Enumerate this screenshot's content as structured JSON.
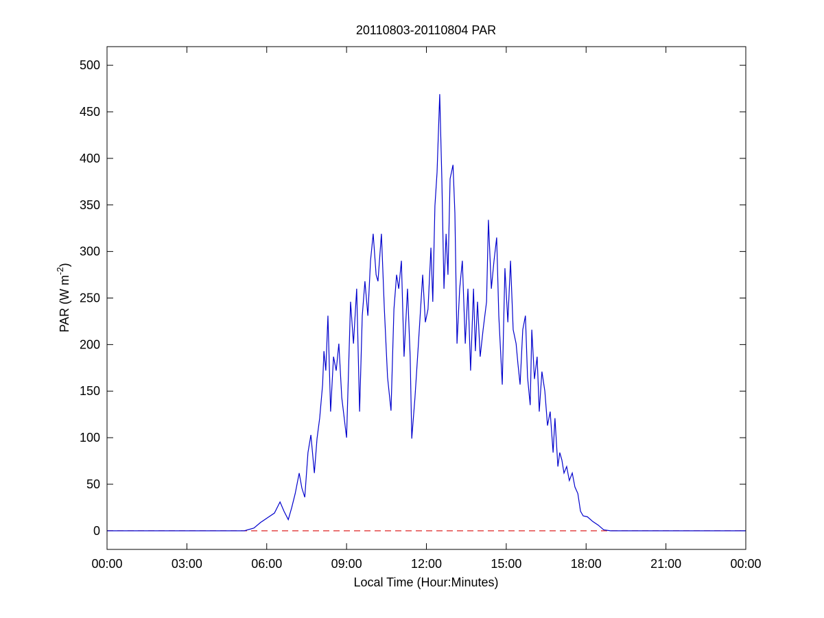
{
  "chart_data": {
    "type": "line",
    "title": "20110803-20110804 PAR",
    "xlabel": "Local Time (Hour:Minutes)",
    "ylabel": [
      "PAR (W m",
      "-2",
      ")"
    ],
    "xlim": [
      0,
      24
    ],
    "xticks": [
      {
        "value": 0,
        "label": "00:00"
      },
      {
        "value": 3,
        "label": "03:00"
      },
      {
        "value": 6,
        "label": "06:00"
      },
      {
        "value": 9,
        "label": "09:00"
      },
      {
        "value": 12,
        "label": "12:00"
      },
      {
        "value": 15,
        "label": "15:00"
      },
      {
        "value": 18,
        "label": "18:00"
      },
      {
        "value": 21,
        "label": "21:00"
      },
      {
        "value": 24,
        "label": "00:00"
      }
    ],
    "ylim": [
      -20,
      520
    ],
    "yticks": [
      0,
      50,
      100,
      150,
      200,
      250,
      300,
      350,
      400,
      450,
      500
    ],
    "grid": false,
    "reference_line": {
      "y": 0,
      "color": "#dd2222",
      "dashed": true
    },
    "series": [
      {
        "color": "#0000cc",
        "x": [
          0,
          5.16,
          5.52,
          5.77,
          6.08,
          6.29,
          6.5,
          6.65,
          6.81,
          6.94,
          7.07,
          7.22,
          7.32,
          7.43,
          7.55,
          7.66,
          7.79,
          7.89,
          7.99,
          8.1,
          8.15,
          8.22,
          8.3,
          8.4,
          8.51,
          8.61,
          8.71,
          8.82,
          9.0,
          9.15,
          9.26,
          9.38,
          9.49,
          9.59,
          9.69,
          9.8,
          9.9,
          10.0,
          10.11,
          10.18,
          10.31,
          10.42,
          10.54,
          10.67,
          10.78,
          10.88,
          10.96,
          11.06,
          11.16,
          11.29,
          11.39,
          11.45,
          11.57,
          11.7,
          11.78,
          11.86,
          11.96,
          12.06,
          12.17,
          12.24,
          12.32,
          12.4,
          12.5,
          12.58,
          12.66,
          12.74,
          12.81,
          12.89,
          13.0,
          13.07,
          13.15,
          13.25,
          13.35,
          13.46,
          13.56,
          13.66,
          13.77,
          13.84,
          13.92,
          14.02,
          14.13,
          14.26,
          14.33,
          14.44,
          14.54,
          14.64,
          14.72,
          14.85,
          14.95,
          15.06,
          15.16,
          15.26,
          15.37,
          15.44,
          15.52,
          15.62,
          15.72,
          15.8,
          15.9,
          15.96,
          16.06,
          16.16,
          16.24,
          16.34,
          16.45,
          16.55,
          16.65,
          16.76,
          16.83,
          16.94,
          17.01,
          17.09,
          17.17,
          17.27,
          17.37,
          17.48,
          17.58,
          17.69,
          17.79,
          17.89,
          18.05,
          18.25,
          18.46,
          18.66,
          18.92,
          24
        ],
        "values": [
          0,
          0,
          3,
          9,
          15,
          19,
          31,
          21,
          12,
          25,
          40,
          62,
          46,
          36,
          84,
          103,
          62,
          99,
          121,
          157,
          193,
          172,
          231,
          128,
          187,
          172,
          201,
          143,
          100,
          246,
          201,
          260,
          128,
          231,
          268,
          231,
          290,
          319,
          275,
          268,
          319,
          238,
          165,
          129,
          238,
          275,
          260,
          290,
          187,
          260,
          187,
          99,
          143,
          201,
          238,
          275,
          224,
          238,
          304,
          246,
          349,
          385,
          469,
          378,
          260,
          319,
          275,
          378,
          393,
          341,
          201,
          260,
          290,
          201,
          260,
          172,
          260,
          193,
          246,
          187,
          216,
          246,
          334,
          260,
          290,
          315,
          231,
          157,
          282,
          224,
          290,
          216,
          201,
          179,
          157,
          216,
          231,
          165,
          135,
          216,
          163,
          187,
          128,
          171,
          150,
          113,
          128,
          84,
          121,
          69,
          84,
          76,
          62,
          69,
          54,
          62,
          47,
          40,
          21,
          16,
          15,
          10,
          6,
          1,
          0,
          0
        ]
      }
    ]
  }
}
